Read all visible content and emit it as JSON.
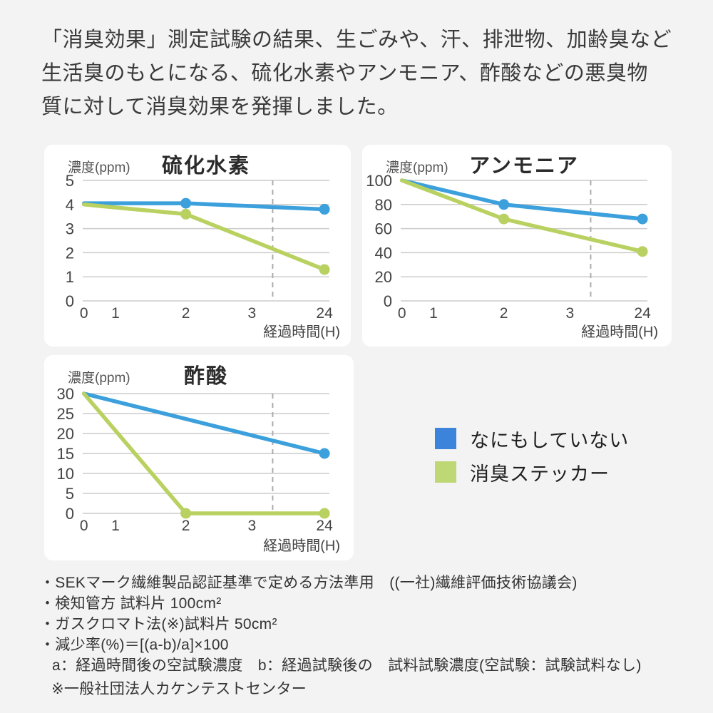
{
  "page": {
    "background": "#F3F3F3",
    "card_background": "#FFFFFF"
  },
  "header": {
    "lines": [
      "「消臭効果」測定試験の結果、生ごみや、汗、排泄物、加齢臭など",
      "生活臭のもとになる、硫化水素やアンモニア、酢酸などの悪臭物",
      "質に対して消臭効果を発揮しました。"
    ]
  },
  "colors": {
    "line_blue": "#3CA0DC",
    "line_green": "#B9D160",
    "grid": "#CCCCCC",
    "dashed": "#ABABAB",
    "tick_text": "#444444"
  },
  "legend": {
    "items": [
      {
        "label": "なにもしていない",
        "color": "#3C83DB",
        "series_key": "blue"
      },
      {
        "label": "消臭ステッカー",
        "color": "#BED876",
        "series_key": "green"
      }
    ]
  },
  "chart_data": [
    {
      "type": "line",
      "title": "硫化水素",
      "y_unit": "濃度(ppm)",
      "x_unit": "経過時間(H)",
      "ylim": [
        0,
        5
      ],
      "y_ticks": [
        "5",
        "4",
        "3",
        "2",
        "1",
        "0"
      ],
      "x_ticks": [
        "0",
        "1",
        "2",
        "3",
        "24"
      ],
      "grid": true,
      "axis_break_dashed_line": true,
      "series": [
        {
          "name": "なにもしていない",
          "color_key": "blue",
          "points": [
            {
              "t": "0",
              "v": 4.05,
              "dot": false
            },
            {
              "t": "2",
              "v": 4.05,
              "dot": true
            },
            {
              "t": "24",
              "v": 3.8,
              "dot": true
            }
          ]
        },
        {
          "name": "消臭ステッカー",
          "color_key": "green",
          "points": [
            {
              "t": "0",
              "v": 4.0,
              "dot": false
            },
            {
              "t": "2",
              "v": 3.6,
              "dot": true
            },
            {
              "t": "24",
              "v": 1.3,
              "dot": true
            }
          ]
        }
      ]
    },
    {
      "type": "line",
      "title": "アンモニア",
      "y_unit": "濃度(ppm)",
      "x_unit": "経過時間(H)",
      "ylim": [
        0,
        100
      ],
      "y_ticks": [
        "100",
        "80",
        "60",
        "40",
        "20",
        "0"
      ],
      "x_ticks": [
        "0",
        "1",
        "2",
        "3",
        "24"
      ],
      "grid": true,
      "axis_break_dashed_line": true,
      "series": [
        {
          "name": "なにもしていない",
          "color_key": "blue",
          "points": [
            {
              "t": "0",
              "v": 100,
              "dot": false
            },
            {
              "t": "2",
              "v": 80,
              "dot": true
            },
            {
              "t": "24",
              "v": 68,
              "dot": true
            }
          ]
        },
        {
          "name": "消臭ステッカー",
          "color_key": "green",
          "points": [
            {
              "t": "0",
              "v": 100,
              "dot": false
            },
            {
              "t": "2",
              "v": 68,
              "dot": true
            },
            {
              "t": "24",
              "v": 41,
              "dot": true
            }
          ]
        }
      ]
    },
    {
      "type": "line",
      "title": "酢酸",
      "y_unit": "濃度(ppm)",
      "x_unit": "経過時間(H)",
      "ylim": [
        0,
        30
      ],
      "y_ticks": [
        "30",
        "25",
        "20",
        "15",
        "10",
        "5",
        "0"
      ],
      "x_ticks": [
        "0",
        "1",
        "2",
        "3",
        "24"
      ],
      "grid": true,
      "axis_break_dashed_line": true,
      "series": [
        {
          "name": "なにもしていない",
          "color_key": "blue",
          "points": [
            {
              "t": "0",
              "v": 30,
              "dot": false
            },
            {
              "t": "24",
              "v": 15,
              "dot": true
            }
          ]
        },
        {
          "name": "消臭ステッカー",
          "color_key": "green",
          "points": [
            {
              "t": "0",
              "v": 30,
              "dot": false
            },
            {
              "t": "2",
              "v": 0,
              "dot": true
            },
            {
              "t": "24",
              "v": 0,
              "dot": true
            }
          ]
        }
      ]
    }
  ],
  "footnotes": {
    "bullets": [
      "・SEKマーク繊維製品認証基準で定める方法準用　((一社)繊維評価技術協議会)",
      "・検知管方 試料片 100cm²",
      "・ガスクロマト法(※)試料片 50cm²",
      "・減少率(%)＝[(a-b)/a]×100"
    ],
    "sub": "a：経過時間後の空試験濃度　b：経過試験後の　試料試験濃度(空試験：試験試料なし)",
    "note": "※一般社団法人カケンテストセンター"
  }
}
